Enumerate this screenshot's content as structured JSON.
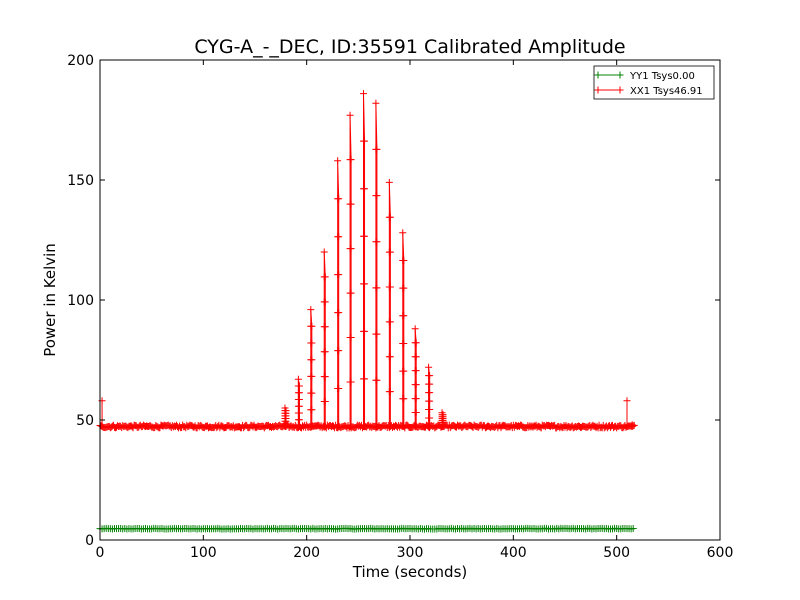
{
  "chart_data": {
    "type": "line",
    "title": "CYG-A_-_DEC, ID:35591 Calibrated Amplitude",
    "xlabel": "Time (seconds)",
    "ylabel": "Power in Kelvin",
    "xlim": [
      0,
      600
    ],
    "ylim": [
      0,
      200
    ],
    "xticks": [
      0,
      100,
      200,
      300,
      400,
      500,
      600
    ],
    "yticks": [
      0,
      50,
      100,
      150,
      200
    ],
    "grid": false,
    "legend_position": "top-right",
    "series": [
      {
        "name": "YY1 Tsys0.00",
        "color": "#008000",
        "marker": "+",
        "x_start": 0,
        "x_end": 517,
        "x_step": 2,
        "baseline": 4.7
      },
      {
        "name": "XX1 Tsys46.91",
        "color": "#ff0000",
        "marker": "+",
        "x_start": 0,
        "x_end": 517,
        "x_step": 1,
        "baseline": 47.3,
        "edge_spikes": [
          {
            "x": 2,
            "peak": 58
          },
          {
            "x": 510,
            "peak": 58
          },
          {
            "x": 515,
            "peak": 48
          }
        ],
        "spikes": [
          {
            "x": 179,
            "peak": 55
          },
          {
            "x": 192,
            "peak": 67
          },
          {
            "x": 204,
            "peak": 96
          },
          {
            "x": 217,
            "peak": 120
          },
          {
            "x": 230,
            "peak": 158
          },
          {
            "x": 242,
            "peak": 177
          },
          {
            "x": 255,
            "peak": 186
          },
          {
            "x": 267,
            "peak": 182
          },
          {
            "x": 280,
            "peak": 149
          },
          {
            "x": 293,
            "peak": 128
          },
          {
            "x": 305,
            "peak": 88
          },
          {
            "x": 318,
            "peak": 72
          },
          {
            "x": 331,
            "peak": 53
          }
        ]
      }
    ]
  }
}
